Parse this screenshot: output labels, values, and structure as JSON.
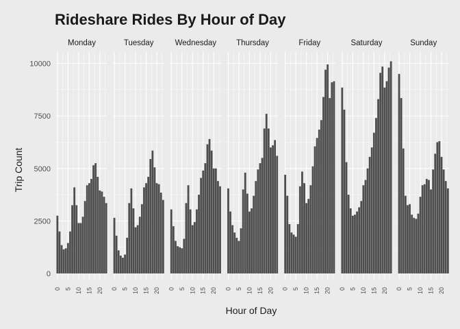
{
  "chart_data": {
    "type": "bar",
    "title": "Rideshare Rides By Hour of Day",
    "xlabel": "Hour of Day",
    "ylabel": "Trip Count",
    "ylim": [
      0,
      10400
    ],
    "xlim": [
      -0.6,
      23.6
    ],
    "yticks": [
      0,
      2500,
      5000,
      7500,
      10000
    ],
    "ytick_labels": [
      "0",
      "2500",
      "5000",
      "7500",
      "10000"
    ],
    "xticks": [
      0,
      5,
      10,
      15,
      20
    ],
    "xtick_labels": [
      "0",
      "5",
      "10",
      "15",
      "20"
    ],
    "grid": true,
    "bar_color": "#4d4d4d",
    "background_color": "#ebebeb",
    "grid_color": "#ffffff",
    "hours": [
      0,
      1,
      2,
      3,
      4,
      5,
      6,
      7,
      8,
      9,
      10,
      11,
      12,
      13,
      14,
      15,
      16,
      17,
      18,
      19,
      20,
      21,
      22,
      23
    ],
    "panels": [
      {
        "name": "Monday",
        "values": [
          2750,
          2000,
          1350,
          1150,
          1200,
          1450,
          2000,
          3250,
          4100,
          3250,
          2400,
          2400,
          2700,
          3450,
          4200,
          4300,
          4500,
          5150,
          5250,
          4600,
          3950,
          3900,
          3650,
          3350
        ]
      },
      {
        "name": "Tuesday",
        "values": [
          2650,
          1800,
          1100,
          850,
          750,
          900,
          1700,
          3350,
          4050,
          3100,
          2200,
          2300,
          2700,
          3300,
          4100,
          4300,
          4600,
          5450,
          5850,
          5050,
          4300,
          4250,
          3850,
          3500
        ]
      },
      {
        "name": "Wednesday",
        "values": [
          3050,
          2250,
          1550,
          1300,
          1250,
          1200,
          1650,
          3350,
          4200,
          3050,
          2300,
          2450,
          3050,
          3750,
          4550,
          4900,
          5250,
          6150,
          6400,
          5850,
          5000,
          5000,
          4400,
          4150
        ]
      },
      {
        "name": "Thursday",
        "values": [
          4050,
          2950,
          2300,
          1950,
          1700,
          1550,
          2150,
          4000,
          4800,
          3800,
          2950,
          3100,
          3700,
          4400,
          4950,
          5250,
          5500,
          6900,
          7600,
          6900,
          6000,
          6100,
          6350,
          5600
        ]
      },
      {
        "name": "Friday",
        "values": [
          4700,
          3700,
          2350,
          1950,
          1850,
          1750,
          2350,
          4150,
          4850,
          4300,
          3350,
          3550,
          4200,
          5100,
          6050,
          6450,
          6850,
          7300,
          8400,
          9700,
          9950,
          8350,
          9100,
          9150
        ]
      },
      {
        "name": "Saturday",
        "values": [
          8850,
          7800,
          5300,
          3750,
          3100,
          2750,
          2800,
          2950,
          3150,
          3450,
          4200,
          4450,
          5000,
          5550,
          6000,
          6700,
          7400,
          8300,
          9550,
          9850,
          8850,
          9150,
          9800,
          10100
        ]
      },
      {
        "name": "Sunday",
        "values": [
          9500,
          8350,
          5950,
          3700,
          3250,
          3300,
          2800,
          2650,
          2600,
          2850,
          3650,
          4200,
          4250,
          4500,
          4450,
          4000,
          4950,
          5700,
          6250,
          6300,
          5550,
          4950,
          4400,
          4050
        ]
      }
    ]
  }
}
